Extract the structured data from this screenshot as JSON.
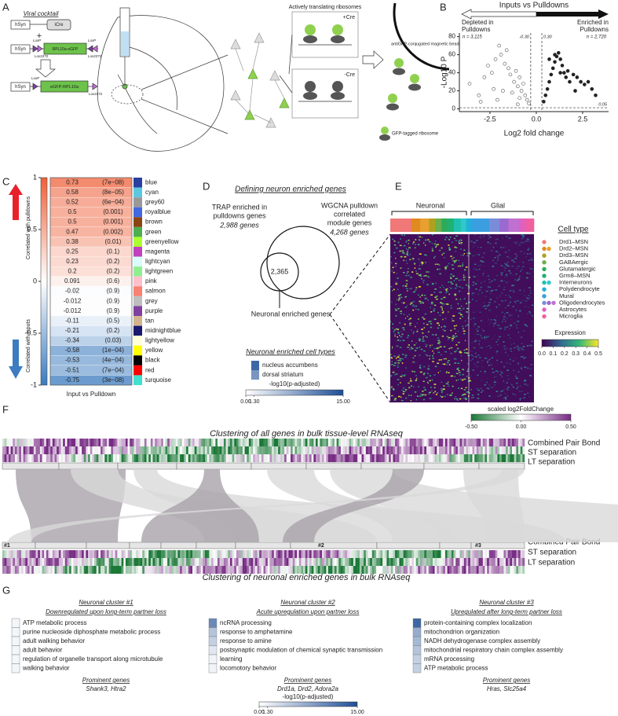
{
  "panel_a": {
    "label": "A",
    "viral_cocktail": "Viral cocktail",
    "promoter": [
      "hSyn",
      "hSyn",
      "hSyn"
    ],
    "icre": "iCre",
    "plus": "+",
    "lox": [
      "LoxP",
      "Lox2272",
      "LoxP",
      "Lox2272",
      "LoxP",
      "Lox2272"
    ],
    "flipped": "RPL10a-eGFP",
    "construct": "eGFP-RPL10a",
    "translating": "Actively translating ribosomes",
    "plus_cre": "+Cre",
    "minus_cre": "-Cre",
    "bead": "antiGFP-conjugated magnetic bead",
    "gfp_ribosome": "GFP-tagged ribosome"
  },
  "panel_b": {
    "label": "B",
    "type": "scatter",
    "title": "Inputs vs Pulldowns",
    "depleted": [
      "Depleted in",
      "Pulldowns"
    ],
    "enriched": [
      "Enriched in",
      "Pulldowns"
    ],
    "n_depleted": "n = 3,115",
    "n_enriched": "n = 2,720",
    "x_label": "Log2 fold change",
    "y_label": "-Log10 P",
    "xlim": [
      -4.15,
      3.9
    ],
    "ylim": [
      -3,
      84
    ],
    "xticks": [
      -2.5,
      {
        "value": 0,
        "label": "0.0"
      },
      2.5
    ],
    "yticks": [
      0,
      20,
      40,
      60,
      80
    ],
    "fc_thresholds": [
      {
        "value": -0.3,
        "label": "-0.30"
      },
      {
        "value": 0.3,
        "label": "0.30"
      }
    ],
    "p_threshold": {
      "value": 1.3,
      "label": "0.05"
    },
    "series": [
      {
        "color": "#ffffff",
        "stroke": "#555555",
        "x": [
          -3.6,
          -3.1,
          -2.8,
          -2.6,
          -2.4,
          -2.2,
          -2.0,
          -1.9,
          -1.7,
          -1.6,
          -1.5,
          -1.4,
          -1.2,
          -1.1,
          -1.0,
          -0.9,
          -0.8,
          -0.7,
          -0.6,
          -0.5,
          -0.4,
          -1.8,
          -2.3,
          -1.3,
          -0.9,
          -3.0,
          -2.1,
          -1.0
        ],
        "values": [
          28,
          15,
          35,
          48,
          40,
          55,
          70,
          60,
          50,
          65,
          45,
          38,
          30,
          42,
          25,
          35,
          20,
          28,
          15,
          10,
          6,
          20,
          22,
          18,
          12,
          8,
          10,
          5
        ]
      },
      {
        "color": "#222222",
        "stroke": "#222222",
        "x": [
          0.4,
          0.5,
          0.6,
          0.7,
          0.8,
          0.9,
          1.0,
          1.1,
          1.2,
          1.3,
          1.4,
          1.5,
          1.6,
          1.7,
          1.8,
          2.0,
          2.2,
          2.4,
          2.6,
          2.8,
          3.0,
          3.2,
          0.7,
          1.0,
          1.3,
          2.1
        ],
        "values": [
          8,
          15,
          22,
          30,
          38,
          45,
          52,
          58,
          62,
          55,
          48,
          40,
          35,
          42,
          30,
          38,
          35,
          30,
          27,
          30,
          22,
          15,
          55,
          60,
          40,
          20
        ]
      }
    ]
  },
  "panel_c": {
    "label": "C",
    "up_label": "Correlated with pulldowns",
    "down_label": "Correlated with inputs",
    "x_label": "Input vs Pulldown",
    "colorbar": {
      "lim": [
        -1,
        1
      ],
      "ticks": [
        1,
        0.5,
        0,
        -0.5,
        -1
      ],
      "colors": [
        "#3b7bbf",
        "#ffffff",
        "#ee6038"
      ]
    },
    "modules": [
      {
        "name": "blue",
        "value": 0.73,
        "p": "(7e−08)",
        "color": "#2b3fa0"
      },
      {
        "name": "cyan",
        "value": 0.58,
        "p": "(8e−05)",
        "color": "#5cc8e0"
      },
      {
        "name": "grey60",
        "value": 0.52,
        "p": "(6e−04)",
        "color": "#999999"
      },
      {
        "name": "royalblue",
        "value": 0.5,
        "p": "(0.001)",
        "color": "#4169e1"
      },
      {
        "name": "brown",
        "value": 0.5,
        "p": "(0.001)",
        "color": "#8b4513"
      },
      {
        "name": "green",
        "value": 0.47,
        "p": "(0.002)",
        "color": "#4caf50"
      },
      {
        "name": "greenyellow",
        "value": 0.38,
        "p": "(0.01)",
        "color": "#adff2f"
      },
      {
        "name": "magenta",
        "value": 0.25,
        "p": "(0.1)",
        "color": "#c040c0"
      },
      {
        "name": "lightcyan",
        "value": 0.23,
        "p": "(0.2)",
        "color": "#d8fbfb"
      },
      {
        "name": "lightgreen",
        "value": 0.2,
        "p": "(0.2)",
        "color": "#90ee90"
      },
      {
        "name": "pink",
        "value": 0.091,
        "p": "(0.6)",
        "color": "#ffc0cb"
      },
      {
        "name": "salmon",
        "value": -0.02,
        "p": "(0.9)",
        "color": "#fa8072"
      },
      {
        "name": "grey",
        "value": -0.012,
        "p": "(0.9)",
        "color": "#bebebe"
      },
      {
        "name": "purple",
        "value": -0.012,
        "p": "(0.9)",
        "color": "#8040a0"
      },
      {
        "name": "tan",
        "value": -0.11,
        "p": "(0.5)",
        "color": "#d2b48c"
      },
      {
        "name": "midnightblue",
        "value": -0.21,
        "p": "(0.2)",
        "color": "#191970"
      },
      {
        "name": "lightyellow",
        "value": -0.34,
        "p": "(0.03)",
        "color": "#ffffd8"
      },
      {
        "name": "yellow",
        "value": -0.58,
        "p": "(1e−04)",
        "color": "#ffff00"
      },
      {
        "name": "black",
        "value": -0.53,
        "p": "(4e−04)",
        "color": "#000000"
      },
      {
        "name": "red",
        "value": -0.51,
        "p": "(7e−04)",
        "color": "#ff0000"
      },
      {
        "name": "turquoise",
        "value": -0.75,
        "p": "(3e−08)",
        "color": "#40e0d0"
      }
    ]
  },
  "panel_d": {
    "label": "D",
    "title": "Defining neuron enriched genes",
    "venn": {
      "left": [
        "TRAP enriched in",
        "pulldowns genes"
      ],
      "left_count": "2,988 genes",
      "right": [
        "WGCNA pulldown",
        "correlated",
        "module genes"
      ],
      "right_count": "4,268 genes",
      "overlap": "2,365"
    },
    "overlap_label": "Neuronal enriched genes",
    "cell_types_title": "Neuronal enriched cell types",
    "cell_types": [
      {
        "name": "nucleus accumbens",
        "value": 13
      },
      {
        "name": "dorsal striatum",
        "value": 9
      }
    ],
    "colorbar": {
      "title": "-log10(p-adjusted)",
      "lim": [
        0,
        15
      ],
      "ticks": [
        {
          "value": 0,
          "label": "0.00"
        },
        {
          "value": 1.3,
          "label": "1.30"
        },
        {
          "value": 15,
          "label": "15.00"
        }
      ],
      "colors": [
        "#ffffff",
        "#1f4e96"
      ]
    }
  },
  "panel_e": {
    "label": "E",
    "groups": [
      "Neuronal",
      "Glial"
    ],
    "legend_title": "Cell type",
    "cell_types": [
      {
        "name": "Drd1–MSN",
        "colors": [
          "#f07878"
        ]
      },
      {
        "name": "Drd2–MSN",
        "colors": [
          "#e08a20",
          "#e8a030"
        ]
      },
      {
        "name": "Drd3–MSN",
        "colors": [
          "#b0a020"
        ]
      },
      {
        "name": "GABAergic",
        "colors": [
          "#6ab04c"
        ]
      },
      {
        "name": "Glutamatergic",
        "colors": [
          "#2eaa5a"
        ]
      },
      {
        "name": "Grm8–MSN",
        "colors": [
          "#20b070"
        ]
      },
      {
        "name": "Interneurons",
        "colors": [
          "#20c0b0",
          "#30c8c8"
        ]
      },
      {
        "name": "Polydendrocyte",
        "colors": [
          "#20b0d8"
        ]
      },
      {
        "name": "Mural",
        "colors": [
          "#3a9ee0"
        ]
      },
      {
        "name": "Oligodendrocytes",
        "colors": [
          "#7a8cd8",
          "#9a6ad0",
          "#c070d0"
        ]
      },
      {
        "name": "Astrocytes",
        "colors": [
          "#e060c0"
        ]
      },
      {
        "name": "Microglia",
        "colors": [
          "#f060a0"
        ]
      }
    ],
    "expression": {
      "title": "Expression",
      "lim": [
        0,
        0.5
      ],
      "ticks": [
        {
          "value": 0,
          "label": "0.0"
        },
        0.1,
        0.2,
        0.3,
        0.4,
        0.5
      ],
      "colors": [
        "#440154",
        "#31688e",
        "#35b779",
        "#fde725"
      ]
    }
  },
  "panel_f": {
    "label": "F",
    "colorbar": {
      "title": "scaled log2FoldChange",
      "lim": [
        -0.5,
        0.5
      ],
      "ticks": [
        {
          "value": -0.5,
          "label": "-0.50"
        },
        {
          "value": 0,
          "label": "0.00"
        },
        {
          "value": 0.5,
          "label": "0.50"
        }
      ],
      "colors": [
        "#1b7837",
        "#ffffff",
        "#762a83"
      ]
    },
    "top_title": "Clustering of all genes in bulk tissue-level RNAseq",
    "bottom_title": "Clustering of neuronal enriched genes in bulk RNAseq",
    "tracks_top": [
      "Combined Pair Bond",
      "ST separation",
      "LT separation"
    ],
    "tracks_bottom": [
      "Combined Pair Bond",
      "ST separation",
      "LT separation"
    ],
    "clusters": [
      "#1",
      "#2",
      "#3"
    ]
  },
  "panel_g": {
    "label": "G",
    "clusters": [
      {
        "title": "Neuronal cluster #1",
        "subtitle": "Downregulated upon long-term partner loss",
        "terms": [
          {
            "name": "ATP metabolic process",
            "value": 0.8
          },
          {
            "name": "purine nucleoside diphosphate metabolic process",
            "value": 0.8
          },
          {
            "name": "adult walking behavior",
            "value": 0.8
          },
          {
            "name": "adult behavior",
            "value": 0.8
          },
          {
            "name": "regulation of organelle transport along microtubule",
            "value": 0.8
          },
          {
            "name": "walking behavior",
            "value": 0.8
          }
        ],
        "genes_title": "Prominent genes",
        "genes": "Shank3, Htra2"
      },
      {
        "title": "Neuronal cluster #2",
        "subtitle": "Acute upregulation upon partner loss",
        "terms": [
          {
            "name": "ncRNA processing",
            "value": 10
          },
          {
            "name": "response to amphetamine",
            "value": 5
          },
          {
            "name": "response to amine",
            "value": 4
          },
          {
            "name": "postsynaptic modulation of chemical synaptic transmission",
            "value": 2
          },
          {
            "name": "learning",
            "value": 1
          },
          {
            "name": "locomotory behavior",
            "value": 1
          }
        ],
        "genes_title": "Prominent genes",
        "genes": "Drd1a, Drd2, Adora2a"
      },
      {
        "title": "Neuronal cluster #3",
        "subtitle": "Upregulated after long-term partner loss",
        "terms": [
          {
            "name": "protein-containing complex localization",
            "value": 13
          },
          {
            "name": "mitochondrion organization",
            "value": 7
          },
          {
            "name": "NADH dehydrogenase complex assembly",
            "value": 6
          },
          {
            "name": "mitochondrial respiratory chain complex assembly",
            "value": 5
          },
          {
            "name": "mRNA processing",
            "value": 4
          },
          {
            "name": "ATP metabolic process",
            "value": 4
          }
        ],
        "genes_title": "Prominent genes",
        "genes": "Hras, Slc25a4"
      }
    ],
    "colorbar": {
      "title": "-log10(p-adjusted)",
      "lim": [
        0,
        15
      ],
      "ticks": [
        {
          "value": 0,
          "label": "0.00"
        },
        {
          "value": 1.3,
          "label": "1.30"
        },
        {
          "value": 15,
          "label": "15.00"
        }
      ],
      "colors": [
        "#ffffff",
        "#1f4e96"
      ]
    }
  }
}
